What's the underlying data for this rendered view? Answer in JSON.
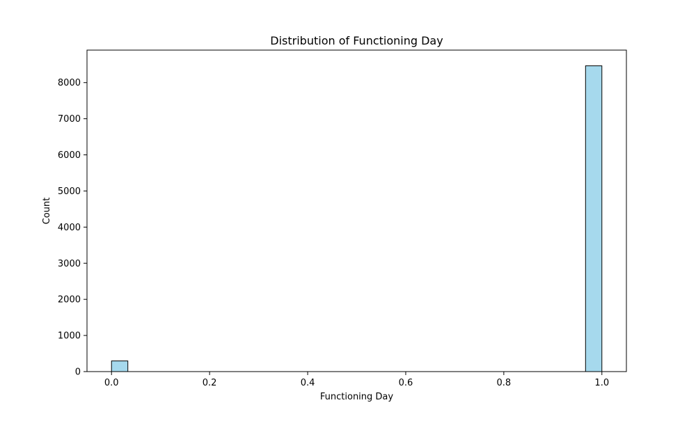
{
  "chart_data": {
    "type": "bar",
    "title": "Distribution of Functioning Day",
    "xlabel": "Functioning Day",
    "ylabel": "Count",
    "xlim": [
      -0.05,
      1.05
    ],
    "ylim": [
      0,
      8900
    ],
    "xticks": [
      0.0,
      0.2,
      0.4,
      0.6,
      0.8,
      1.0
    ],
    "xtick_labels": [
      "0.0",
      "0.2",
      "0.4",
      "0.6",
      "0.8",
      "1.0"
    ],
    "yticks": [
      0,
      1000,
      2000,
      3000,
      4000,
      5000,
      6000,
      7000,
      8000
    ],
    "ytick_labels": [
      "0",
      "1000",
      "2000",
      "3000",
      "4000",
      "5000",
      "6000",
      "7000",
      "8000"
    ],
    "bins": [
      {
        "x0": 0.0,
        "x1": 0.0333,
        "count": 295
      },
      {
        "x0": 0.9667,
        "x1": 1.0,
        "count": 8465
      }
    ],
    "bar_color": "#a6d9ed",
    "edge_color": "#000000",
    "grid": false,
    "legend": "none"
  }
}
